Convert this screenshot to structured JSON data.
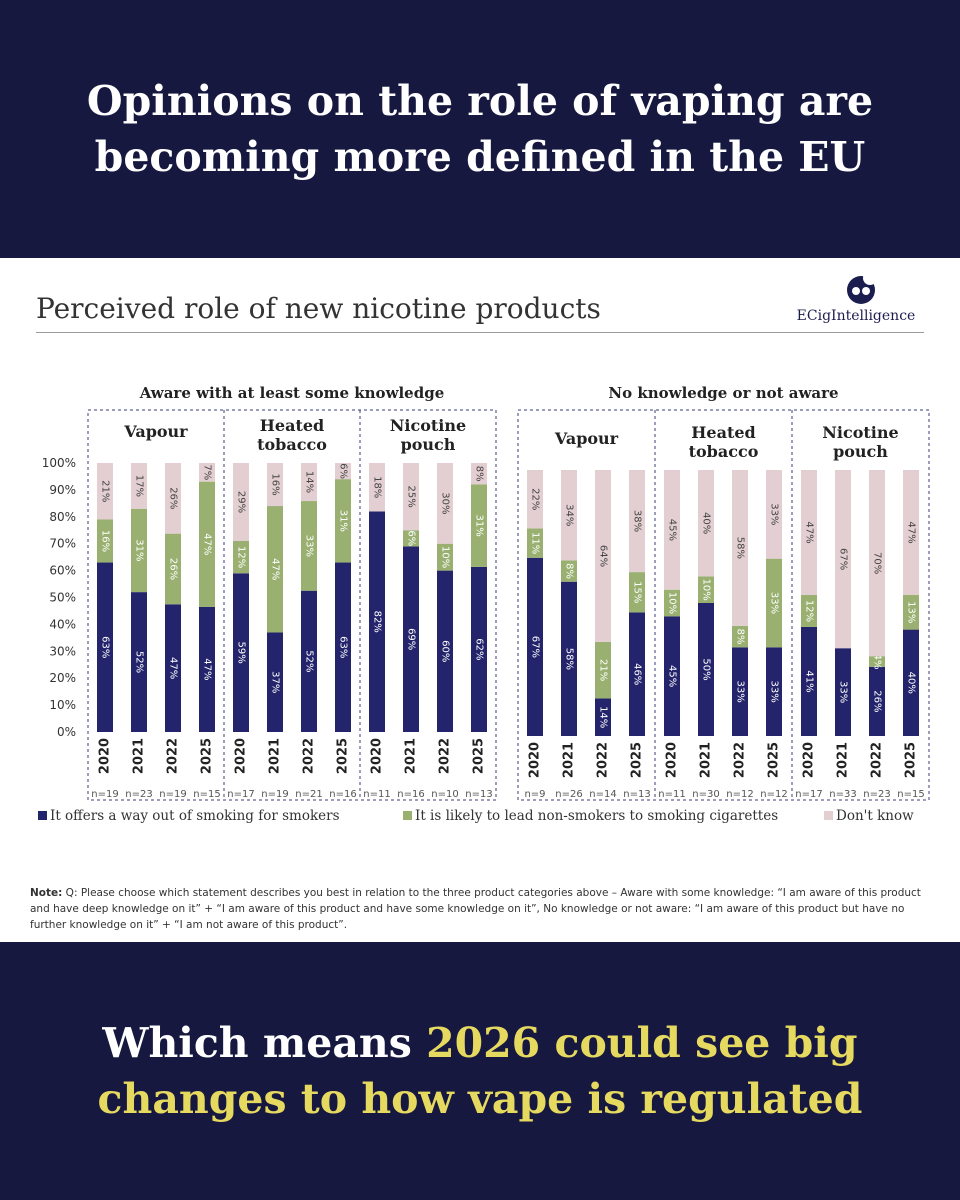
{
  "header": {
    "line1": "Opinions on the role of vaping are",
    "line2": "becoming more defined in the EU"
  },
  "logo": {
    "text": "ECigIntelligence"
  },
  "chart_data": {
    "type": "bar",
    "stacked": true,
    "title": "Perceived role of new nicotine products",
    "ylim": [
      0,
      100
    ],
    "yticks": [
      "0%",
      "10%",
      "20%",
      "30%",
      "40%",
      "50%",
      "60%",
      "70%",
      "80%",
      "90%",
      "100%"
    ],
    "legend": [
      {
        "label": "It offers a way out of smoking for smokers",
        "color": "#23246b"
      },
      {
        "label": "It is likely to lead non-smokers to smoking cigarettes",
        "color": "#99b071"
      },
      {
        "label": "Don't know",
        "color": "#e3cfd1"
      }
    ],
    "groups": [
      {
        "name": "Aware with at least some knowledge",
        "panels": [
          {
            "label": [
              "Vapour"
            ],
            "bars": [
              {
                "year": "2020",
                "n": "n=19",
                "values": [
                  63,
                  16,
                  21
                ]
              },
              {
                "year": "2021",
                "n": "n=23",
                "values": [
                  52,
                  31,
                  17
                ]
              },
              {
                "year": "2022",
                "n": "n=19",
                "values": [
                  47,
                  26,
                  26
                ]
              },
              {
                "year": "2025",
                "n": "n=15",
                "values": [
                  47,
                  47,
                  7
                ]
              }
            ]
          },
          {
            "label": [
              "Heated",
              "tobacco"
            ],
            "bars": [
              {
                "year": "2020",
                "n": "n=17",
                "values": [
                  59,
                  12,
                  29
                ]
              },
              {
                "year": "2021",
                "n": "n=19",
                "values": [
                  37,
                  47,
                  16
                ]
              },
              {
                "year": "2022",
                "n": "n=21",
                "values": [
                  52,
                  33,
                  14
                ]
              },
              {
                "year": "2025",
                "n": "n=16",
                "values": [
                  63,
                  31,
                  6
                ]
              }
            ]
          },
          {
            "label": [
              "Nicotine",
              "pouch"
            ],
            "bars": [
              {
                "year": "2020",
                "n": "n=11",
                "values": [
                  82,
                  0,
                  18
                ]
              },
              {
                "year": "2021",
                "n": "n=16",
                "values": [
                  69,
                  6,
                  25
                ]
              },
              {
                "year": "2022",
                "n": "n=10",
                "values": [
                  60,
                  10,
                  30
                ]
              },
              {
                "year": "2025",
                "n": "n=13",
                "values": [
                  62,
                  31,
                  8
                ]
              }
            ]
          }
        ]
      },
      {
        "name": "No knowledge or not aware",
        "panels": [
          {
            "label": [
              "Vapour"
            ],
            "bars": [
              {
                "year": "2020",
                "n": "n=9",
                "values": [
                  67,
                  11,
                  22
                ]
              },
              {
                "year": "2021",
                "n": "n=26",
                "values": [
                  58,
                  8,
                  34
                ]
              },
              {
                "year": "2022",
                "n": "n=14",
                "values": [
                  14,
                  21,
                  64
                ]
              },
              {
                "year": "2025",
                "n": "n=13",
                "values": [
                  46,
                  15,
                  38
                ]
              }
            ]
          },
          {
            "label": [
              "Heated",
              "tobacco"
            ],
            "bars": [
              {
                "year": "2020",
                "n": "n=11",
                "values": [
                  45,
                  10,
                  45
                ]
              },
              {
                "year": "2021",
                "n": "n=30",
                "values": [
                  50,
                  10,
                  40
                ]
              },
              {
                "year": "2022",
                "n": "n=12",
                "values": [
                  33,
                  8,
                  58
                ]
              },
              {
                "year": "2025",
                "n": "n=12",
                "values": [
                  33,
                  33,
                  33
                ]
              }
            ]
          },
          {
            "label": [
              "Nicotine",
              "pouch"
            ],
            "bars": [
              {
                "year": "2020",
                "n": "n=17",
                "values": [
                  41,
                  12,
                  47
                ]
              },
              {
                "year": "2021",
                "n": "n=33",
                "values": [
                  33,
                  0,
                  67
                ]
              },
              {
                "year": "2022",
                "n": "n=23",
                "values": [
                  26,
                  4,
                  70
                ]
              },
              {
                "year": "2025",
                "n": "n=15",
                "values": [
                  40,
                  13,
                  47
                ]
              }
            ]
          }
        ]
      }
    ]
  },
  "note": {
    "label": "Note:",
    "text": " Q: Please choose which statement describes you best in relation to the three product categories above – Aware with some knowledge: “I am aware of this product and have deep knowledge on it” + “I am aware of this product and have some knowledge on it”, No knowledge or not aware: “I am aware of this product but have no further knowledge on it” + “I am not aware of this product”."
  },
  "footer": {
    "white_text": "Which means",
    "yellow_text_1": "2026 could see big",
    "yellow_text_2": "changes to how vape is regulated"
  }
}
